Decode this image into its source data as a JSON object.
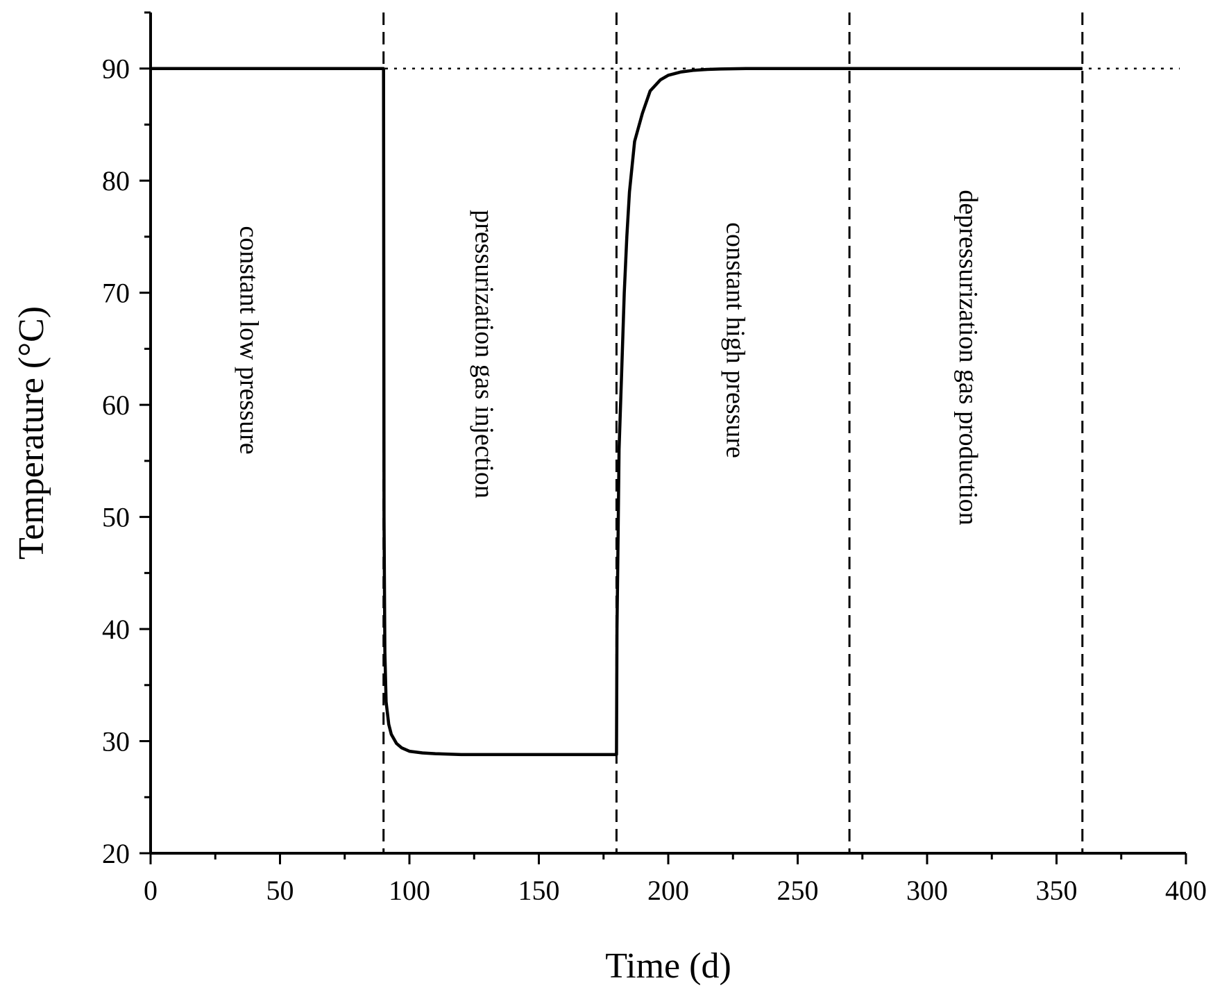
{
  "chart_data": {
    "type": "line",
    "title": "",
    "xlabel": "Time (d)",
    "ylabel": "Temperature (°C)",
    "xlim": [
      0,
      400
    ],
    "ylim": [
      20,
      95
    ],
    "x_ticks": [
      0,
      50,
      100,
      150,
      200,
      250,
      300,
      350,
      400
    ],
    "y_ticks": [
      20,
      30,
      40,
      50,
      60,
      70,
      80,
      90
    ],
    "grid": false,
    "reference_line": {
      "y": 90,
      "style": "dotted"
    },
    "phase_boundaries": [
      90,
      180,
      270,
      360
    ],
    "phases": [
      {
        "label": "constant low pressure",
        "x": 37
      },
      {
        "label": "pressurization gas injection",
        "x": 128
      },
      {
        "label": "constant high pressure",
        "x": 225
      },
      {
        "label": "depressurization gas production",
        "x": 315
      }
    ],
    "series": [
      {
        "x": [
          0,
          90,
          90.2,
          90.5,
          91,
          92,
          93,
          95,
          97,
          100,
          105,
          110,
          120,
          150,
          180,
          180.2,
          180.5,
          181,
          182,
          183,
          184,
          185,
          187,
          190,
          193,
          197,
          200,
          205,
          210,
          215,
          220,
          230,
          250,
          280,
          300,
          360
        ],
        "y": [
          90,
          90,
          50,
          38,
          33.5,
          31.5,
          30.6,
          29.8,
          29.4,
          29.1,
          28.95,
          28.88,
          28.8,
          28.8,
          28.8,
          40,
          46,
          56,
          63,
          70,
          75,
          79,
          83.5,
          86,
          88,
          89,
          89.4,
          89.7,
          89.85,
          89.92,
          89.96,
          90,
          90,
          90,
          90,
          90
        ]
      }
    ]
  }
}
